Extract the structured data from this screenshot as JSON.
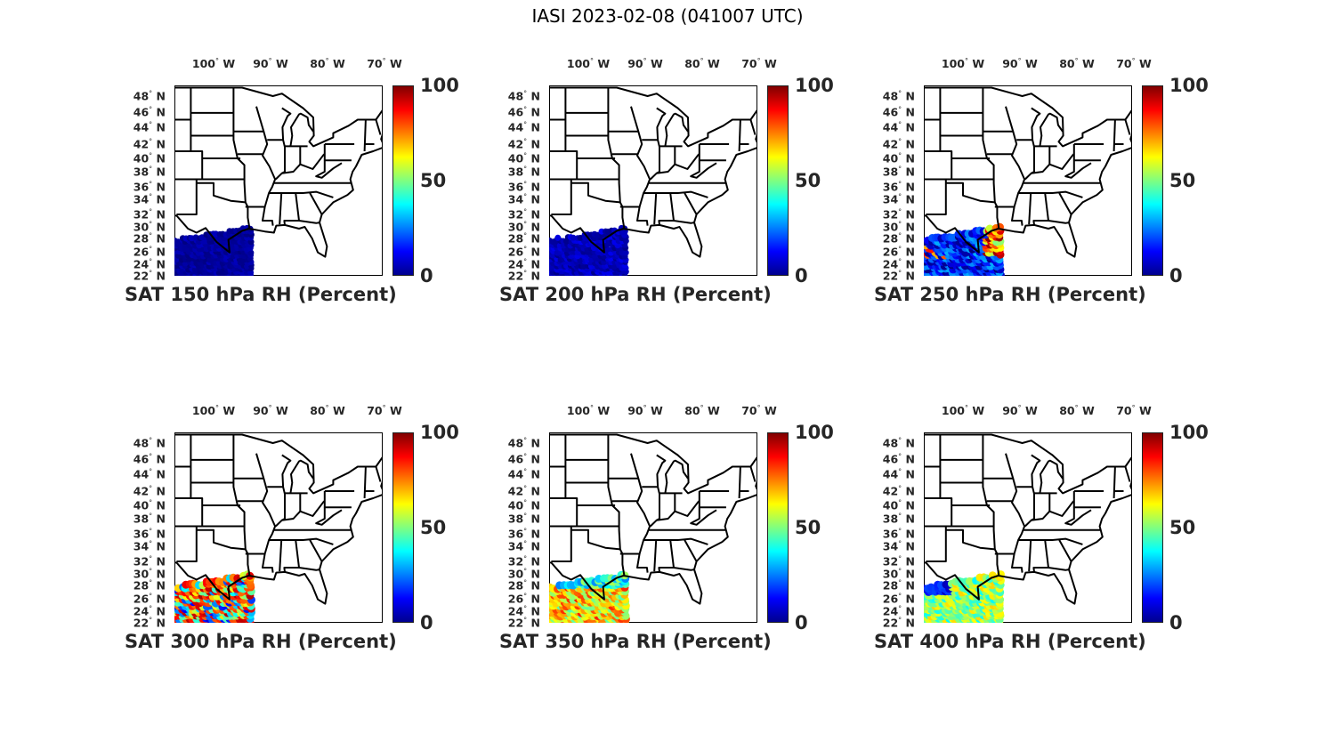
{
  "figure_title": "IASI 2023-02-08 (041007 UTC)",
  "lon_labels": [
    "100",
    "90",
    "80",
    "70"
  ],
  "lon_suffix": "W",
  "lat_labels": [
    "48",
    "46",
    "44",
    "42",
    "40",
    "38",
    "36",
    "34",
    "32",
    "30",
    "28",
    "26",
    "24",
    "22"
  ],
  "lat_suffix": "N",
  "degree_symbol": "°",
  "colorbar_ticks": [
    "100",
    "50",
    "0"
  ],
  "chart_data": {
    "type": "scatter",
    "colormap": "jet",
    "color_range": [
      0,
      100
    ],
    "panels": [
      {
        "title": "SAT 150 hPa RH (Percent)",
        "level_hPa": 150,
        "typical_rh_percent": 3,
        "spread": 3
      },
      {
        "title": "SAT 200 hPa RH (Percent)",
        "level_hPa": 200,
        "typical_rh_percent": 6,
        "spread": 5
      },
      {
        "title": "SAT 250 hPa RH (Percent)",
        "level_hPa": 250,
        "typical_rh_percent": 15,
        "spread": 15
      },
      {
        "title": "SAT 300 hPa RH (Percent)",
        "level_hPa": 300,
        "typical_rh_percent": 45,
        "spread": 35
      },
      {
        "title": "SAT 350 hPa RH (Percent)",
        "level_hPa": 350,
        "typical_rh_percent": 65,
        "spread": 20
      },
      {
        "title": "SAT 400 hPa RH (Percent)",
        "level_hPa": 400,
        "typical_rh_percent": 52,
        "spread": 15
      }
    ]
  }
}
